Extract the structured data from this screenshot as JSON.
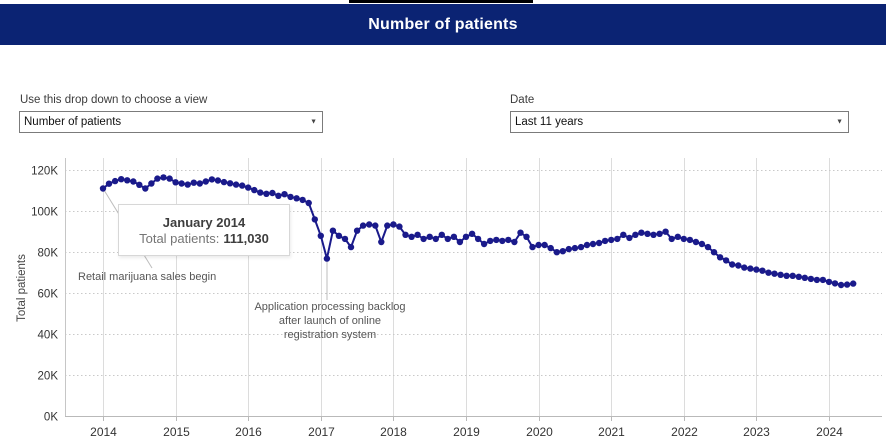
{
  "header": {
    "title": "Number of patients",
    "bg_color": "#0b2373",
    "text_color": "#ffffff"
  },
  "controls": {
    "view": {
      "label": "Use this drop down to choose a view",
      "selected": "Number of patients"
    },
    "date": {
      "label": "Date",
      "selected": "Last 11 years"
    }
  },
  "chart_data": {
    "type": "line",
    "title": "",
    "xlabel": "",
    "ylabel": "Total patients",
    "x_start": "2014-01",
    "x_freq": "monthly",
    "x_tick_labels": [
      "2014",
      "2015",
      "2016",
      "2017",
      "2018",
      "2019",
      "2020",
      "2021",
      "2022",
      "2023",
      "2024"
    ],
    "y_tick_labels": [
      "0K",
      "20K",
      "40K",
      "60K",
      "80K",
      "100K",
      "120K"
    ],
    "ylim": [
      0,
      120
    ],
    "unit": "thousands of patients",
    "grid": true,
    "legend": false,
    "line_color": "#1a1a8b",
    "series": [
      {
        "name": "Total patients",
        "values": [
          111.0,
          113.3,
          114.6,
          115.5,
          115.0,
          114.4,
          112.8,
          111.0,
          113.4,
          115.8,
          116.4,
          115.8,
          114.0,
          113.4,
          112.9,
          113.8,
          113.4,
          114.4,
          115.4,
          114.9,
          114.1,
          113.5,
          112.9,
          112.4,
          111.4,
          110.2,
          109.0,
          108.4,
          108.8,
          107.4,
          108.2,
          106.9,
          106.2,
          105.4,
          103.9,
          95.9,
          87.9,
          76.8,
          90.4,
          87.9,
          86.4,
          82.4,
          90.4,
          92.9,
          93.4,
          92.9,
          84.9,
          92.9,
          93.4,
          92.4,
          88.4,
          87.4,
          88.4,
          86.4,
          87.4,
          86.4,
          88.4,
          86.4,
          87.4,
          84.9,
          87.4,
          88.9,
          86.4,
          83.9,
          85.4,
          85.9,
          85.4,
          85.9,
          84.9,
          89.4,
          87.4,
          82.4,
          83.4,
          83.4,
          81.9,
          79.9,
          80.4,
          81.4,
          81.9,
          82.4,
          83.4,
          83.9,
          84.4,
          85.4,
          85.9,
          86.4,
          88.4,
          86.9,
          88.4,
          89.4,
          88.9,
          88.4,
          88.9,
          89.9,
          86.4,
          87.4,
          86.4,
          85.9,
          84.9,
          83.9,
          82.4,
          79.9,
          77.4,
          75.9,
          73.9,
          73.4,
          72.4,
          71.9,
          71.4,
          70.9,
          69.9,
          69.4,
          68.9,
          68.4,
          68.4,
          67.9,
          67.4,
          66.9,
          66.4,
          66.4,
          65.4,
          64.7,
          63.9,
          64.1,
          64.6
        ]
      }
    ],
    "annotations": [
      {
        "text": "Retail marijuana sales begin",
        "points_to": "2014-01"
      },
      {
        "text": "Application processing backlog\nafter launch of online\nregistration system",
        "points_to": "2017-02"
      }
    ],
    "tooltip": {
      "title": "January 2014",
      "label": "Total patients:",
      "value": "111,030"
    }
  }
}
